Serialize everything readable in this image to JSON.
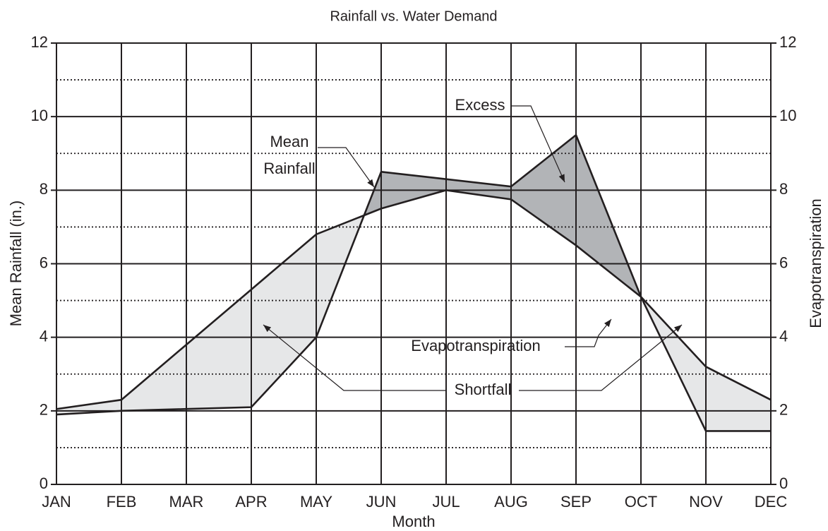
{
  "chart_data": {
    "type": "area-difference",
    "title": "Rainfall vs. Water Demand",
    "xlabel": "Month",
    "ylabel": "Mean Rainfall (in.)",
    "y2label": "Evapotranspiration",
    "categories": [
      "JAN",
      "FEB",
      "MAR",
      "APR",
      "MAY",
      "JUN",
      "JUL",
      "AUG",
      "SEP",
      "OCT",
      "NOV",
      "DEC"
    ],
    "series": [
      {
        "name": "Mean Rainfall",
        "color": "#231f20",
        "values": [
          1.9,
          2.0,
          2.05,
          2.1,
          4.0,
          8.5,
          8.3,
          8.1,
          9.5,
          5.1,
          1.45,
          1.45
        ]
      },
      {
        "name": "Evapotranspiration",
        "color": "#231f20",
        "axis": "y2",
        "values": [
          2.05,
          2.3,
          3.8,
          5.3,
          6.8,
          7.5,
          8.0,
          7.75,
          6.5,
          5.1,
          3.2,
          2.3
        ]
      }
    ],
    "excess_color": "#b2b4b7",
    "shortfall_color": "#e6e7e8",
    "annotations": {
      "excess": "Excess",
      "shortfall": "Shortfall"
    },
    "ylim": [
      0,
      12
    ],
    "yticks": [
      0,
      2,
      4,
      6,
      8,
      10,
      12
    ],
    "y2lim": [
      0,
      12
    ],
    "y2ticks": [
      0,
      2,
      4,
      6,
      8,
      10,
      12
    ],
    "y_minor_grid": [
      1,
      3,
      5,
      7,
      9,
      11
    ],
    "grid": true
  }
}
